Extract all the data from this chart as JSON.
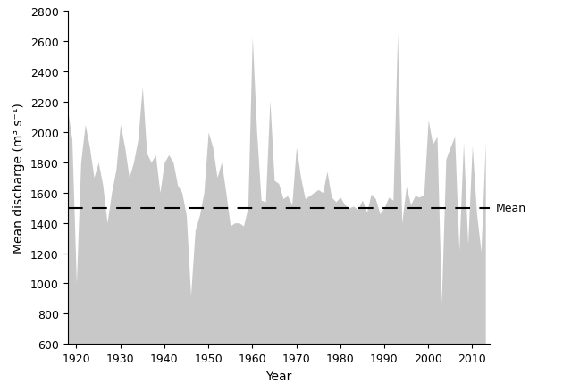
{
  "years": [
    1918,
    1919,
    1920,
    1921,
    1922,
    1923,
    1924,
    1925,
    1926,
    1927,
    1928,
    1929,
    1930,
    1931,
    1932,
    1933,
    1934,
    1935,
    1936,
    1937,
    1938,
    1939,
    1940,
    1941,
    1942,
    1943,
    1944,
    1945,
    1946,
    1947,
    1948,
    1949,
    1950,
    1951,
    1952,
    1953,
    1954,
    1955,
    1956,
    1957,
    1958,
    1959,
    1960,
    1961,
    1962,
    1963,
    1964,
    1965,
    1966,
    1967,
    1968,
    1969,
    1970,
    1971,
    1972,
    1973,
    1974,
    1975,
    1976,
    1977,
    1978,
    1979,
    1980,
    1981,
    1982,
    1983,
    1984,
    1985,
    1986,
    1987,
    1988,
    1989,
    1990,
    1991,
    1992,
    1993,
    1994,
    1995,
    1996,
    1997,
    1998,
    1999,
    2000,
    2001,
    2002,
    2003,
    2004,
    2005,
    2006,
    2007,
    2008,
    2009,
    2010,
    2011,
    2012,
    2013
  ],
  "discharge": [
    2150,
    1950,
    1000,
    1800,
    2050,
    1900,
    1700,
    1800,
    1650,
    1400,
    1600,
    1750,
    2050,
    1900,
    1700,
    1800,
    1950,
    2300,
    1860,
    1800,
    1850,
    1600,
    1800,
    1850,
    1800,
    1650,
    1600,
    1450,
    920,
    1350,
    1450,
    1600,
    2000,
    1900,
    1700,
    1800,
    1600,
    1380,
    1400,
    1400,
    1380,
    1500,
    2630,
    2000,
    1550,
    1540,
    2210,
    1680,
    1660,
    1560,
    1580,
    1520,
    1900,
    1700,
    1560,
    1580,
    1600,
    1620,
    1600,
    1740,
    1570,
    1540,
    1570,
    1520,
    1500,
    1510,
    1490,
    1550,
    1470,
    1590,
    1560,
    1460,
    1500,
    1570,
    1550,
    2650,
    1400,
    1640,
    1520,
    1580,
    1570,
    1590,
    2080,
    1920,
    1970,
    870,
    1820,
    1900,
    1970,
    1220,
    1930,
    1260,
    1910,
    1460,
    1210,
    1930
  ],
  "mean_discharge": 1500,
  "fill_color": "#c8c8c8",
  "line_color": "#c8c8c8",
  "mean_line_color": "#000000",
  "ylabel": "Mean discharge (m³ s⁻¹)",
  "xlabel": "Year",
  "mean_label": "Mean",
  "ylim": [
    600,
    2800
  ],
  "xlim": [
    1918,
    2014
  ],
  "yticks": [
    600,
    800,
    1000,
    1200,
    1400,
    1600,
    1800,
    2000,
    2200,
    2400,
    2600,
    2800
  ],
  "xticks": [
    1920,
    1930,
    1940,
    1950,
    1960,
    1970,
    1980,
    1990,
    2000,
    2010
  ],
  "fig_width": 6.3,
  "fig_height": 4.39,
  "dpi": 100
}
